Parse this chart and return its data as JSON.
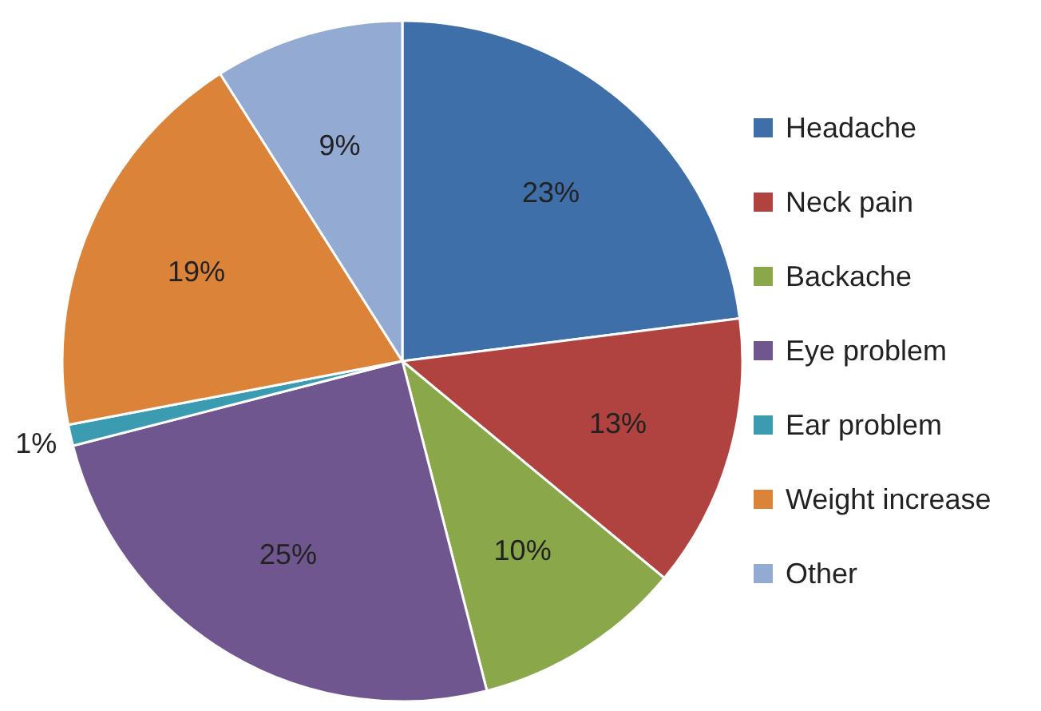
{
  "chart_data": {
    "type": "pie",
    "categories": [
      "Headache",
      "Neck pain",
      "Backache",
      "Eye problem",
      "Ear problem",
      "Weight increase",
      "Other"
    ],
    "values": [
      23,
      13,
      10,
      25,
      1,
      19,
      9
    ],
    "colors": [
      "#3f6fa8",
      "#b0433f",
      "#8aa84a",
      "#6f568e",
      "#3a9bb1",
      "#dc833a",
      "#93aad3"
    ],
    "value_labels": [
      "23%",
      "13%",
      "10%",
      "25%",
      "1%",
      "19%",
      "9%"
    ],
    "legend": "right"
  }
}
